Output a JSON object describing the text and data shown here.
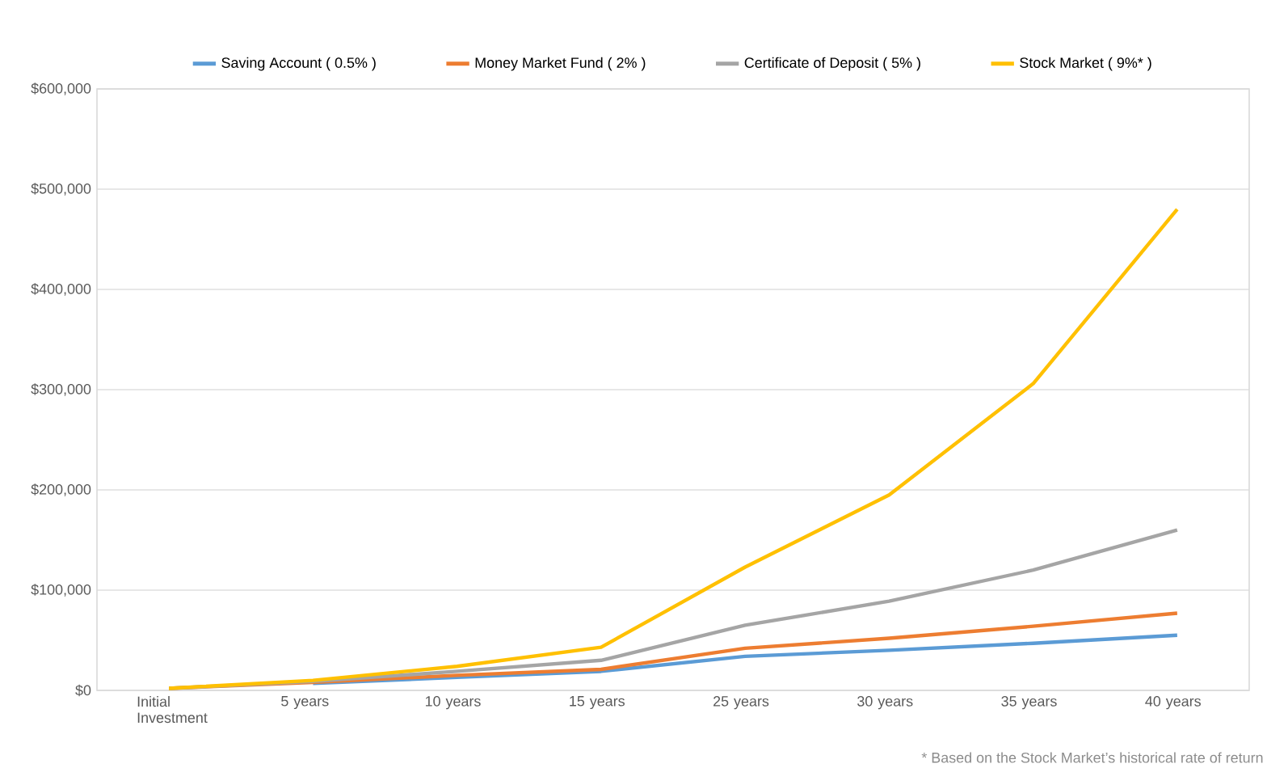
{
  "chart_data": {
    "type": "line",
    "categories": [
      "Initial Investment",
      "5 years",
      "10 years",
      "15 years",
      "25 years",
      "30 years",
      "35 years",
      "40 years"
    ],
    "series": [
      {
        "name": "Saving Account ( 0.5% )",
        "color": "#5b9bd5",
        "values": [
          null,
          7000,
          13000,
          19000,
          34000,
          40000,
          47000,
          55000
        ]
      },
      {
        "name": "Money Market Fund ( 2% )",
        "color": "#ed7d31",
        "values": [
          2000,
          8000,
          15000,
          21000,
          42000,
          52000,
          64000,
          77000
        ]
      },
      {
        "name": "Certificate of Deposit ( 5% )",
        "color": "#a5a5a5",
        "values": [
          2000,
          9000,
          19000,
          30000,
          65000,
          89000,
          120000,
          160000
        ]
      },
      {
        "name": "Stock Market ( 9%* )",
        "color": "#ffc000",
        "values": [
          2000,
          10000,
          24000,
          43000,
          123000,
          195000,
          306000,
          480000
        ]
      }
    ],
    "ylim": [
      0,
      600000
    ],
    "yticks": [
      {
        "value": 0,
        "label": "$0"
      },
      {
        "value": 100000,
        "label": "$100,000"
      },
      {
        "value": 200000,
        "label": "$200,000"
      },
      {
        "value": 300000,
        "label": "$300,000"
      },
      {
        "value": 400000,
        "label": "$400,000"
      },
      {
        "value": 500000,
        "label": "$500,000"
      },
      {
        "value": 600000,
        "label": "$600,000"
      }
    ],
    "grid": "y",
    "legend": "top",
    "marker": "none",
    "line_style": "solid",
    "annotations": [
      "* Based on the Stock Market’s historical rate of return"
    ]
  }
}
